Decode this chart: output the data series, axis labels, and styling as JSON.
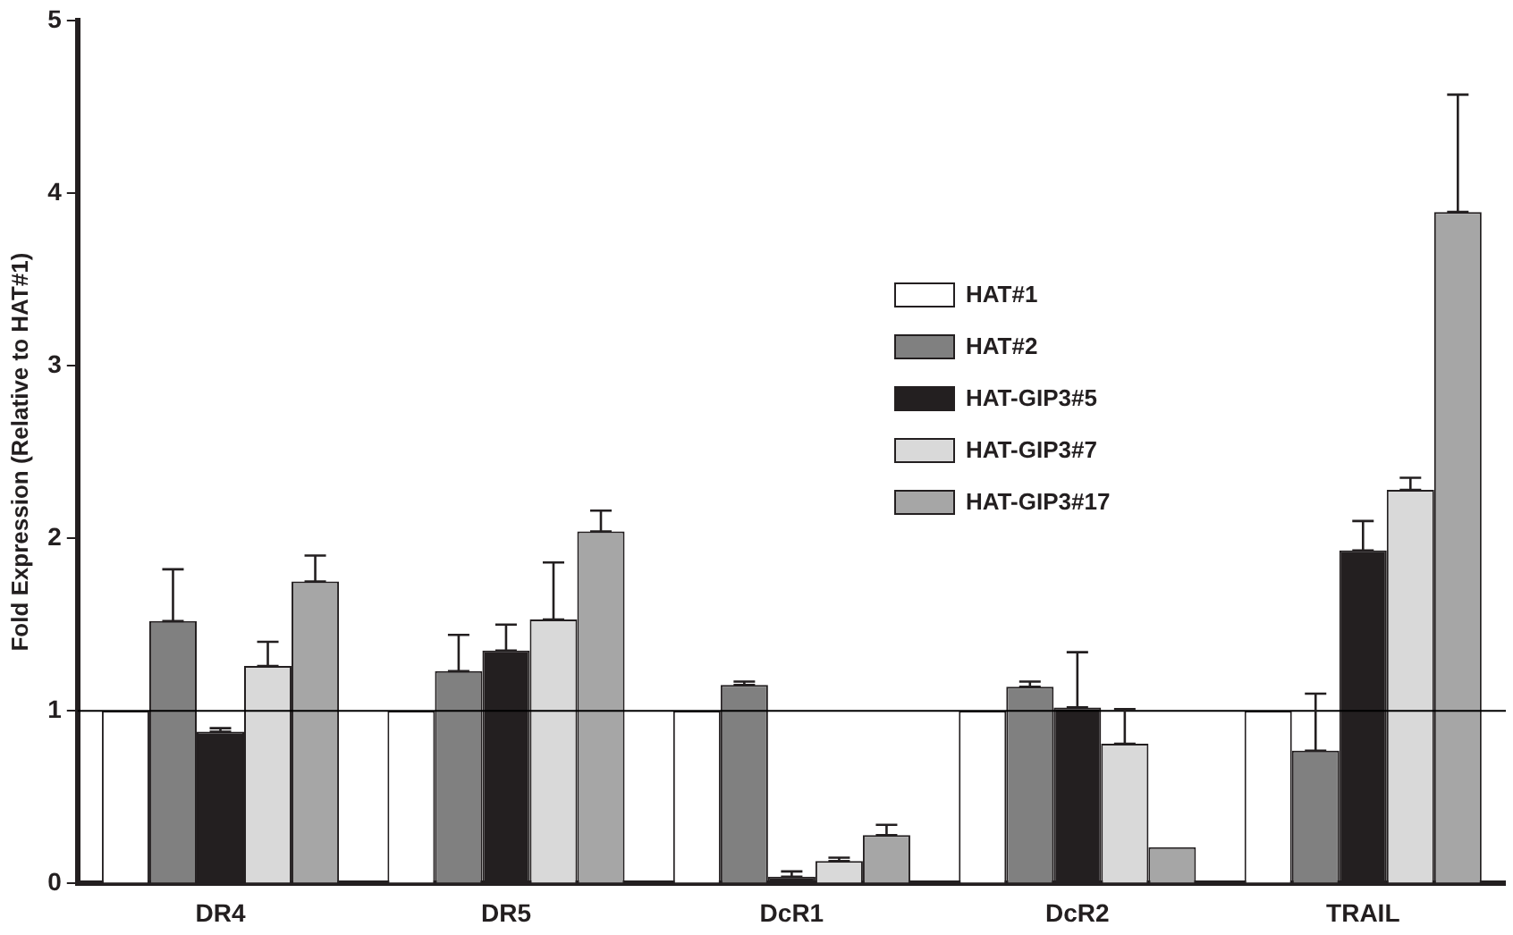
{
  "chart_data": {
    "type": "bar",
    "ylabel": "Fold Expression (Relative to HAT#1)",
    "categories": [
      "DR4",
      "DR5",
      "DcR1",
      "DcR2",
      "TRAIL"
    ],
    "series": [
      {
        "name": "HAT#1",
        "color": "#ffffff",
        "values": [
          1,
          1,
          1,
          1,
          1
        ]
      },
      {
        "name": "HAT#2",
        "color": "#808080",
        "values": [
          1.52,
          1.23,
          1.15,
          1.14,
          0.77
        ],
        "errors": [
          [
            1.52,
            1.82
          ],
          [
            1.23,
            1.44
          ],
          [
            1.15,
            1.17
          ],
          [
            1.14,
            1.17
          ],
          [
            0.77,
            1.1
          ]
        ]
      },
      {
        "name": "HAT-GIP3#5",
        "color": "#231f20",
        "values": [
          0.88,
          1.35,
          0.04,
          1.02,
          1.93
        ],
        "errors": [
          [
            0.88,
            0.9
          ],
          [
            1.35,
            1.5
          ],
          [
            0.04,
            0.07
          ],
          [
            1.02,
            1.34
          ],
          [
            1.93,
            2.1
          ]
        ]
      },
      {
        "name": "HAT-GIP3#7",
        "color": "#d9d9d9",
        "values": [
          1.26,
          1.53,
          0.13,
          0.81,
          2.28
        ],
        "errors": [
          [
            1.26,
            1.4
          ],
          [
            1.53,
            1.86
          ],
          [
            0.13,
            0.15
          ],
          [
            0.81,
            1.01
          ],
          [
            2.28,
            2.35
          ]
        ]
      },
      {
        "name": "HAT-GIP3#17",
        "color": "#a6a6a6",
        "values": [
          1.75,
          2.04,
          0.28,
          0.21,
          3.89
        ],
        "errors": [
          [
            1.75,
            1.9
          ],
          [
            2.04,
            2.16
          ],
          [
            0.28,
            0.34
          ],
          null,
          [
            3.89,
            4.57
          ]
        ]
      }
    ],
    "ylim": [
      0,
      5
    ],
    "yticks": [
      0,
      1,
      2,
      3,
      4,
      5
    ],
    "grid": false,
    "legend": "top",
    "ref_lines": [
      {
        "axis": "y",
        "value": 1,
        "color": "#000000"
      }
    ]
  }
}
